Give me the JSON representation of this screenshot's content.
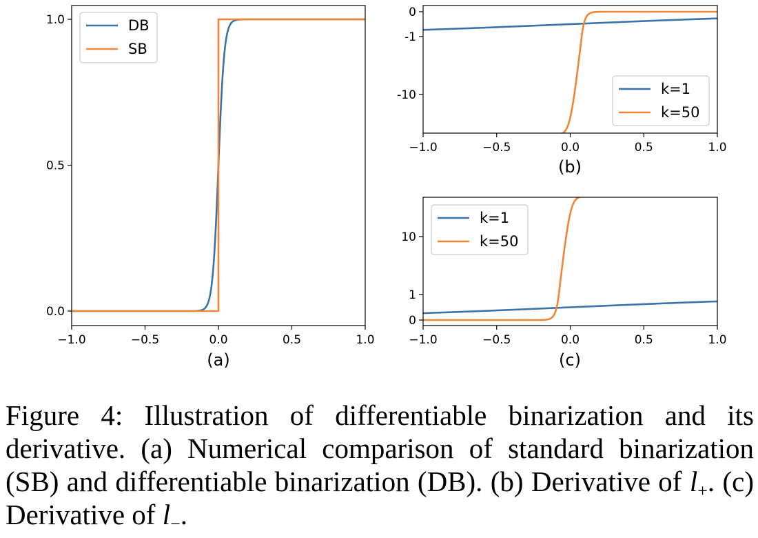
{
  "colors": {
    "blue": "#3b72a8",
    "orange": "#ef8636"
  },
  "caption": {
    "part1": "Figure 4: Illustration of differentiable binarization and its derivative. (a) Numerical comparison of standard binarization (SB) and differentiable binarization (DB). (b) Derivative of ",
    "l_symbol": "l",
    "plus_sub": "+",
    "part2": ". (c) Derivative of ",
    "minus_sub": "−",
    "part3": "."
  },
  "chart_data": [
    {
      "id": "a",
      "type": "line",
      "subplot_label": "(a)",
      "xlim": [
        -1.0,
        1.0
      ],
      "ylim": [
        -0.05,
        1.05
      ],
      "x_ticks": [
        -1.0,
        -0.5,
        0.0,
        0.5,
        1.0
      ],
      "x_tick_labels": [
        "−1.0",
        "−0.5",
        "0.0",
        "0.5",
        "1.0"
      ],
      "y_ticks": [
        0.0,
        0.5,
        1.0
      ],
      "y_tick_labels": [
        "0.0",
        "0.5",
        "1.0"
      ],
      "legend_position": "upper-left",
      "series": [
        {
          "name": "DB",
          "color": "blue",
          "function": "sigmoid",
          "k": 50,
          "x_range": [
            -1,
            1
          ],
          "sample_points": {
            "x": [
              -1.0,
              -0.1,
              -0.05,
              0.0,
              0.05,
              0.1,
              1.0
            ],
            "y": [
              0.0,
              0.007,
              0.076,
              0.5,
              0.924,
              0.993,
              1.0
            ]
          }
        },
        {
          "name": "SB",
          "color": "orange",
          "function": "step",
          "x_range": [
            -1,
            1
          ],
          "sample_points": {
            "x": [
              -1.0,
              0.0,
              0.0,
              1.0
            ],
            "y": [
              0.0,
              0.0,
              1.0,
              1.0
            ]
          }
        }
      ]
    },
    {
      "id": "b",
      "type": "line",
      "subplot_label": "(b)",
      "xlim": [
        -1.0,
        1.0
      ],
      "x_ticks": [
        -1.0,
        -0.5,
        0.0,
        0.5,
        1.0
      ],
      "x_tick_labels": [
        "−1.0",
        "−0.5",
        "0.0",
        "0.5",
        "1.0"
      ],
      "y_scale": "symlog",
      "y_ticks": [
        0,
        -1,
        -10
      ],
      "y_tick_labels": [
        "0",
        "-1",
        "-10"
      ],
      "legend_position": "lower-right",
      "series": [
        {
          "name": "k=1",
          "color": "blue",
          "function": "-k*sigmoid(-k*x)",
          "k": 1,
          "x_range": [
            -1,
            1
          ],
          "sample_points": {
            "x": [
              -1.0,
              0.0,
              1.0
            ],
            "y": [
              -0.731,
              -0.5,
              -0.269
            ]
          }
        },
        {
          "name": "k=50",
          "color": "orange",
          "function": "-k*sigmoid(-k*x)",
          "k": 50,
          "x_range": [
            -1,
            1
          ],
          "sample_points": {
            "x": [
              -1.0,
              -0.05,
              0.0,
              0.05,
              0.1,
              1.0
            ],
            "y": [
              -50,
              -46.2,
              -25,
              -3.8,
              -0.3,
              0.0
            ]
          }
        }
      ]
    },
    {
      "id": "c",
      "type": "line",
      "subplot_label": "(c)",
      "xlim": [
        -1.0,
        1.0
      ],
      "x_ticks": [
        -1.0,
        -0.5,
        0.0,
        0.5,
        1.0
      ],
      "x_tick_labels": [
        "−1.0",
        "−0.5",
        "0.0",
        "0.5",
        "1.0"
      ],
      "y_scale": "symlog",
      "y_ticks": [
        0,
        1,
        10
      ],
      "y_tick_labels": [
        "0",
        "1",
        "10"
      ],
      "legend_position": "upper-left",
      "series": [
        {
          "name": "k=1",
          "color": "blue",
          "function": "k*sigmoid(k*x)",
          "k": 1,
          "x_range": [
            -1,
            1
          ],
          "sample_points": {
            "x": [
              -1.0,
              0.0,
              1.0
            ],
            "y": [
              0.269,
              0.5,
              0.731
            ]
          }
        },
        {
          "name": "k=50",
          "color": "orange",
          "function": "k*sigmoid(k*x)",
          "k": 50,
          "x_range": [
            -1,
            1
          ],
          "sample_points": {
            "x": [
              -1.0,
              -0.1,
              -0.05,
              0.0,
              0.05,
              1.0
            ],
            "y": [
              0.0,
              0.3,
              3.8,
              25,
              46.2,
              50
            ]
          }
        }
      ]
    }
  ]
}
